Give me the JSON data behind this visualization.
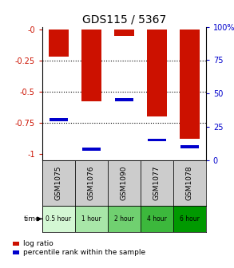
{
  "title": "GDS115 / 5367",
  "categories": [
    "GSM1075",
    "GSM1076",
    "GSM1090",
    "GSM1077",
    "GSM1078"
  ],
  "time_labels": [
    "0.5 hour",
    "1 hour",
    "2 hour",
    "4 hour",
    "6 hour"
  ],
  "log_ratios": [
    -0.22,
    -0.58,
    -0.05,
    -0.7,
    -0.88
  ],
  "percentile_ranks": [
    0.3,
    0.08,
    0.45,
    0.15,
    0.1
  ],
  "ylim_left": [
    -1.05,
    0.02
  ],
  "ylim_right": [
    0,
    100
  ],
  "yticks_left": [
    -1,
    -0.75,
    -0.5,
    -0.25,
    0
  ],
  "ytick_labels_left": [
    "-1",
    "-0.75",
    "-0.5",
    "-0.25",
    "-0"
  ],
  "yticks_right": [
    0,
    25,
    50,
    75,
    100
  ],
  "ytick_labels_right": [
    "0",
    "25",
    "50",
    "75",
    "100%"
  ],
  "bar_color": "#cc1100",
  "marker_color": "#0000cc",
  "background_color": "#ffffff",
  "left_axis_color": "#cc1100",
  "right_axis_color": "#0000cc",
  "bar_width": 0.6,
  "time_colors": [
    "#d4f7d4",
    "#a8e6a8",
    "#70d070",
    "#3cb83c",
    "#009900"
  ],
  "legend_log_ratio": "log ratio",
  "legend_percentile": "percentile rank within the sample"
}
